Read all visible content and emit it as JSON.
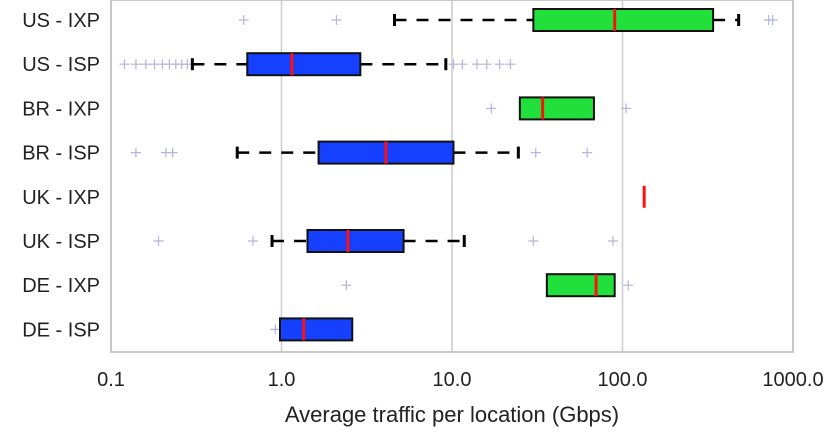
{
  "chart_data": {
    "type": "boxplot",
    "orientation": "horizontal",
    "title": "",
    "xlabel": "Average traffic per location (Gbps)",
    "ylabel": "",
    "xscale": "log",
    "xlim": [
      0.1,
      1000.0
    ],
    "xticks": [
      0.1,
      1.0,
      10.0,
      100.0,
      1000.0
    ],
    "xtick_labels": [
      "0.1",
      "1.0",
      "10.0",
      "100.0",
      "1000.0"
    ],
    "grid": true,
    "colors": {
      "IXP": "#22e03c",
      "ISP": "#1540ff",
      "median": "#ff1010",
      "whisker": "#000000",
      "outlier": "#b4b4dc",
      "grid": "#cccccc",
      "frame": "#c8c8c8"
    },
    "series": [
      {
        "label": "US - IXP",
        "kind": "IXP",
        "whisker_low": 4.6,
        "q1": 30,
        "median": 90,
        "q3": 340,
        "whisker_high": 480,
        "outliers": [
          0.6,
          2.1,
          720,
          760
        ]
      },
      {
        "label": "US - ISP",
        "kind": "ISP",
        "whisker_low": 0.3,
        "q1": 0.63,
        "median": 1.15,
        "q3": 2.9,
        "whisker_high": 9.2,
        "outliers": [
          0.12,
          0.14,
          0.16,
          0.18,
          0.2,
          0.22,
          0.24,
          0.26,
          0.28,
          10.2,
          11.5,
          14,
          16,
          19,
          22
        ]
      },
      {
        "label": "BR - IXP",
        "kind": "IXP",
        "whisker_low": null,
        "q1": 25,
        "median": 34,
        "q3": 68,
        "whisker_high": null,
        "outliers": [
          17,
          105
        ]
      },
      {
        "label": "BR - ISP",
        "kind": "ISP",
        "whisker_low": 0.55,
        "q1": 1.65,
        "median": 4.1,
        "q3": 10.2,
        "whisker_high": 24.5,
        "outliers": [
          0.14,
          0.21,
          0.23,
          31,
          62
        ]
      },
      {
        "label": "UK - IXP",
        "kind": "IXP",
        "whisker_low": null,
        "q1": 134,
        "median": 134,
        "q3": 134,
        "whisker_high": null,
        "outliers": []
      },
      {
        "label": "UK - ISP",
        "kind": "ISP",
        "whisker_low": 0.88,
        "q1": 1.42,
        "median": 2.45,
        "q3": 5.2,
        "whisker_high": 11.8,
        "outliers": [
          0.19,
          0.68,
          30,
          88
        ]
      },
      {
        "label": "DE - IXP",
        "kind": "IXP",
        "whisker_low": null,
        "q1": 36,
        "median": 70,
        "q3": 90,
        "whisker_high": null,
        "outliers": [
          2.4,
          108
        ]
      },
      {
        "label": "DE - ISP",
        "kind": "ISP",
        "whisker_low": null,
        "q1": 0.98,
        "median": 1.35,
        "q3": 2.6,
        "whisker_high": null,
        "outliers": [
          0.92
        ]
      }
    ]
  }
}
